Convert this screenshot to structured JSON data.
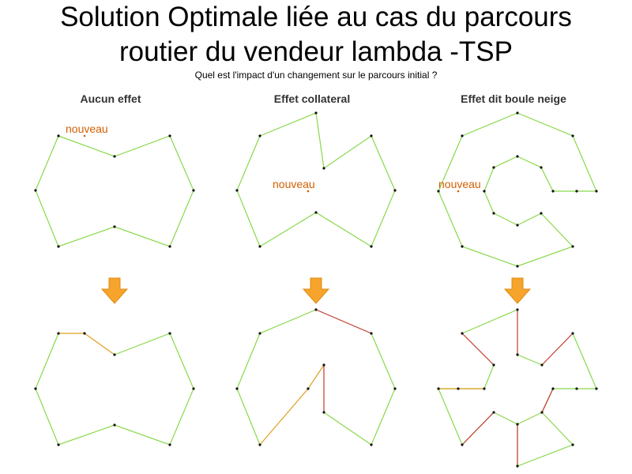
{
  "title_line1": "Solution Optimale liée au cas du parcours",
  "title_line2": "routier du vendeur lambda -TSP",
  "subtitle": "Quel est l'impact d'un changement sur le parcours initial ?",
  "columns": [
    {
      "heading": "Aucun effet",
      "new_point_label": "nouveau"
    },
    {
      "heading": "Effet collateral",
      "new_point_label": "nouveau"
    },
    {
      "heading": "Effet dit boule neige",
      "new_point_label": "nouveau"
    }
  ],
  "colors": {
    "route": "#88d94a",
    "changed_route": "#e0a020",
    "removed_route": "#c0392b",
    "arrow": "#f6a42b",
    "label": "#d35f00"
  }
}
